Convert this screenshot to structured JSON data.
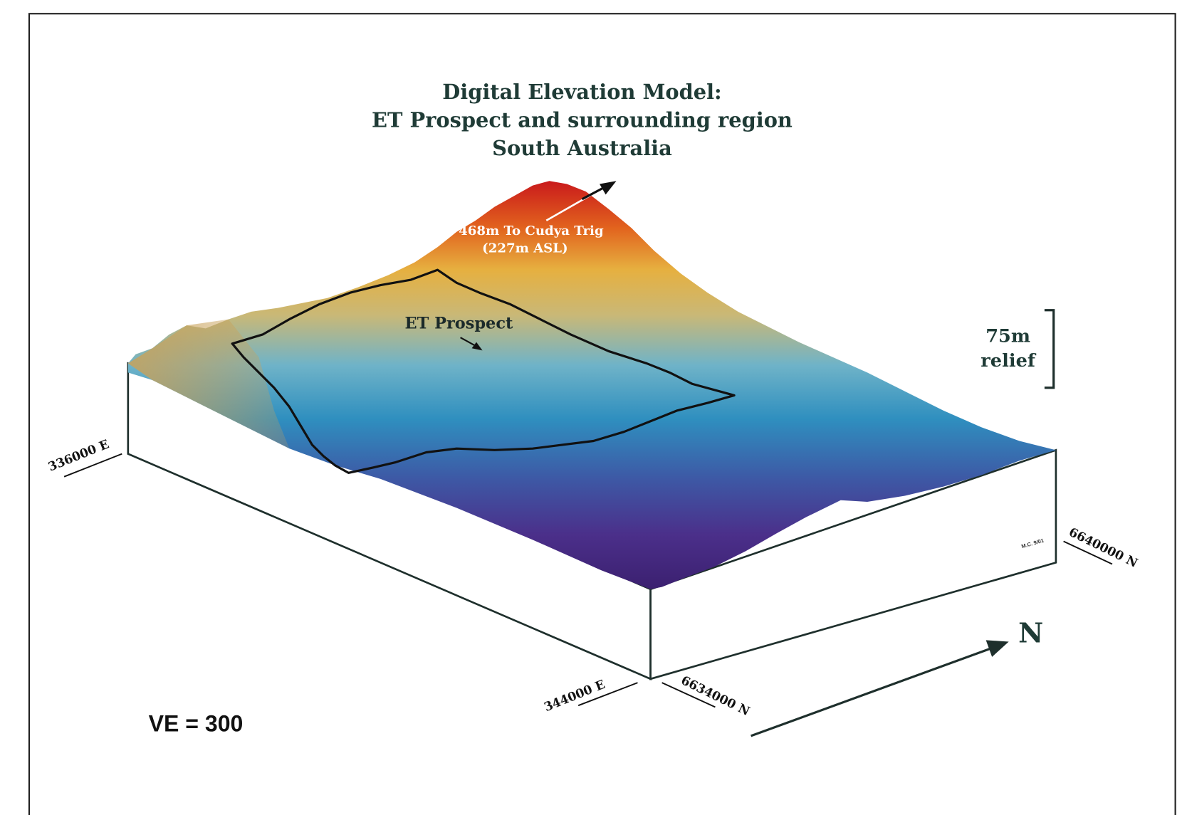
{
  "header": {
    "title_lines": [
      "Digital Elevation Model:",
      "ET Prospect and surrounding region",
      "South Australia"
    ]
  },
  "annotations": {
    "trig": [
      "468m To Cudya Trig",
      "(227m ASL)"
    ],
    "prospect": "ET Prospect",
    "relief": [
      "75m",
      "relief"
    ],
    "ve": "VE = 300",
    "north": "N",
    "credit": "M.C. 9/01"
  },
  "coordinates": {
    "west_e": "336000 E",
    "east_e": "344000 E",
    "south_n": "6634000 N",
    "north_n": "6640000 N"
  }
}
